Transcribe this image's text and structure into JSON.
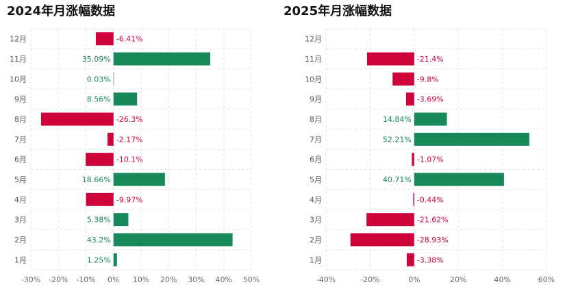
{
  "chart_data": [
    {
      "type": "bar",
      "orientation": "horizontal",
      "title": "2024年月涨幅数据",
      "categories": [
        "1月",
        "2月",
        "3月",
        "4月",
        "5月",
        "6月",
        "7月",
        "8月",
        "9月",
        "10月",
        "11月",
        "12月"
      ],
      "values": [
        1.25,
        43.2,
        5.38,
        -9.97,
        18.66,
        -10.1,
        -2.17,
        -26.3,
        8.56,
        0.03,
        35.09,
        -6.41
      ],
      "labels": [
        "1.25%",
        "43.2%",
        "5.38%",
        "-9.97%",
        "18.66%",
        "-10.1%",
        "-2.17%",
        "-26.3%",
        "8.56%",
        "0.03%",
        "35.09%",
        "-6.41%"
      ],
      "xlim": [
        -30,
        50
      ],
      "xticks": [
        "-30%",
        "-20%",
        "-10%",
        "0%",
        "10%",
        "20%",
        "30%",
        "40%",
        "50%"
      ],
      "grid": true,
      "positive_color": "#17885a",
      "negative_color": "#d0023a"
    },
    {
      "type": "bar",
      "orientation": "horizontal",
      "title": "2025年月涨幅数据",
      "categories": [
        "1月",
        "2月",
        "3月",
        "4月",
        "5月",
        "6月",
        "7月",
        "8月",
        "9月",
        "10月",
        "11月",
        "12月"
      ],
      "values": [
        -3.38,
        -28.93,
        -21.62,
        -0.44,
        40.71,
        -1.07,
        52.21,
        14.84,
        -3.69,
        -9.8,
        -21.4,
        null
      ],
      "labels": [
        "-3.38%",
        "-28.93%",
        "-21.62%",
        "-0.44%",
        "40.71%",
        "-1.07%",
        "52.21%",
        "14.84%",
        "-3.69%",
        "-9.8%",
        "-21.4%",
        ""
      ],
      "xlim": [
        -40,
        60
      ],
      "xticks": [
        "-40%",
        "-20%",
        "0%",
        "20%",
        "40%",
        "60%"
      ],
      "grid": true,
      "positive_color": "#17885a",
      "negative_color": "#d0023a"
    }
  ]
}
